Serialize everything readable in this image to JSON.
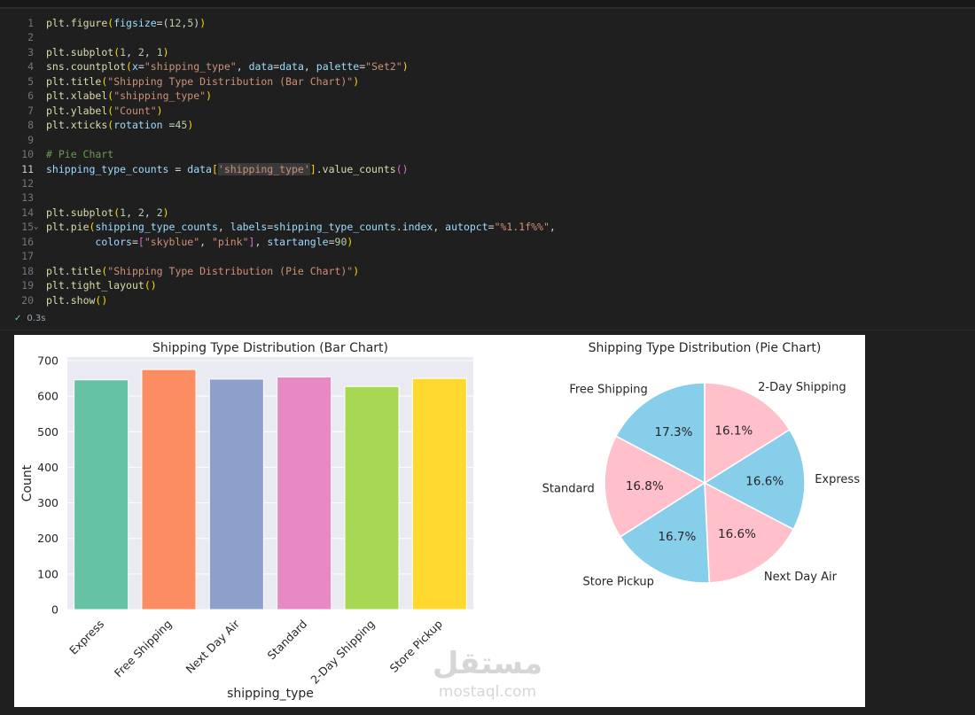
{
  "code_cell": {
    "lines": [
      {
        "n": "1",
        "tokens": [
          [
            "fn",
            "plt"
          ],
          [
            "p",
            "."
          ],
          [
            "fn",
            "figure"
          ],
          [
            "br",
            "("
          ],
          [
            "var",
            "figsize"
          ],
          [
            "p",
            "=("
          ],
          [
            "num",
            "12"
          ],
          [
            "p",
            ","
          ],
          [
            "num",
            "5"
          ],
          [
            "p",
            ")"
          ],
          [
            "br",
            ")"
          ]
        ]
      },
      {
        "n": "2",
        "tokens": []
      },
      {
        "n": "3",
        "tokens": [
          [
            "fn",
            "plt"
          ],
          [
            "p",
            "."
          ],
          [
            "fn",
            "subplot"
          ],
          [
            "br",
            "("
          ],
          [
            "num",
            "1"
          ],
          [
            "p",
            ", "
          ],
          [
            "num",
            "2"
          ],
          [
            "p",
            ", "
          ],
          [
            "num",
            "1"
          ],
          [
            "br",
            ")"
          ]
        ]
      },
      {
        "n": "4",
        "tokens": [
          [
            "fn",
            "sns"
          ],
          [
            "p",
            "."
          ],
          [
            "fn",
            "countplot"
          ],
          [
            "br",
            "("
          ],
          [
            "var",
            "x"
          ],
          [
            "p",
            "="
          ],
          [
            "str",
            "\"shipping_type\""
          ],
          [
            "p",
            ", "
          ],
          [
            "var",
            "data"
          ],
          [
            "p",
            "="
          ],
          [
            "var",
            "data"
          ],
          [
            "p",
            ", "
          ],
          [
            "var",
            "palette"
          ],
          [
            "p",
            "="
          ],
          [
            "str",
            "\"Set2\""
          ],
          [
            "br",
            ")"
          ]
        ]
      },
      {
        "n": "5",
        "tokens": [
          [
            "fn",
            "plt"
          ],
          [
            "p",
            "."
          ],
          [
            "fn",
            "title"
          ],
          [
            "br",
            "("
          ],
          [
            "str",
            "\"Shipping Type Distribution (Bar Chart)\""
          ],
          [
            "br",
            ")"
          ]
        ]
      },
      {
        "n": "6",
        "tokens": [
          [
            "fn",
            "plt"
          ],
          [
            "p",
            "."
          ],
          [
            "fn",
            "xlabel"
          ],
          [
            "br",
            "("
          ],
          [
            "str",
            "\"shipping_type\""
          ],
          [
            "br",
            ")"
          ]
        ]
      },
      {
        "n": "7",
        "tokens": [
          [
            "fn",
            "plt"
          ],
          [
            "p",
            "."
          ],
          [
            "fn",
            "ylabel"
          ],
          [
            "br",
            "("
          ],
          [
            "str",
            "\"Count\""
          ],
          [
            "br",
            ")"
          ]
        ]
      },
      {
        "n": "8",
        "tokens": [
          [
            "fn",
            "plt"
          ],
          [
            "p",
            "."
          ],
          [
            "fn",
            "xticks"
          ],
          [
            "br",
            "("
          ],
          [
            "var",
            "rotation"
          ],
          [
            "p",
            " ="
          ],
          [
            "num",
            "45"
          ],
          [
            "br",
            ")"
          ]
        ]
      },
      {
        "n": "9",
        "tokens": []
      },
      {
        "n": "10",
        "tokens": [
          [
            "com",
            "# Pie Chart"
          ]
        ]
      },
      {
        "n": "11",
        "active": true,
        "tokens": [
          [
            "var",
            "shipping_type_counts"
          ],
          [
            "p",
            " = "
          ],
          [
            "var",
            "data"
          ],
          [
            "br",
            "["
          ],
          [
            "hl",
            "'shipping_type'"
          ],
          [
            "br",
            "]"
          ],
          [
            "p",
            "."
          ],
          [
            "fn",
            "value_counts"
          ],
          [
            "br2",
            "()"
          ]
        ]
      },
      {
        "n": "12",
        "tokens": []
      },
      {
        "n": "13",
        "tokens": []
      },
      {
        "n": "14",
        "tokens": [
          [
            "fn",
            "plt"
          ],
          [
            "p",
            "."
          ],
          [
            "fn",
            "subplot"
          ],
          [
            "br",
            "("
          ],
          [
            "num",
            "1"
          ],
          [
            "p",
            ", "
          ],
          [
            "num",
            "2"
          ],
          [
            "p",
            ", "
          ],
          [
            "num",
            "2"
          ],
          [
            "br",
            ")"
          ]
        ]
      },
      {
        "n": "15",
        "fold": true,
        "tokens": [
          [
            "fn",
            "plt"
          ],
          [
            "p",
            "."
          ],
          [
            "fn",
            "pie"
          ],
          [
            "br",
            "("
          ],
          [
            "var",
            "shipping_type_counts"
          ],
          [
            "p",
            ", "
          ],
          [
            "var",
            "labels"
          ],
          [
            "p",
            "="
          ],
          [
            "var",
            "shipping_type_counts"
          ],
          [
            "p",
            "."
          ],
          [
            "var",
            "index"
          ],
          [
            "p",
            ", "
          ],
          [
            "var",
            "autopct"
          ],
          [
            "p",
            "="
          ],
          [
            "str",
            "\"%1.1f%%\""
          ],
          [
            "p",
            ","
          ]
        ]
      },
      {
        "n": "16",
        "tokens": [
          [
            "p",
            "        "
          ],
          [
            "var",
            "colors"
          ],
          [
            "p",
            "="
          ],
          [
            "br2",
            "["
          ],
          [
            "str",
            "\"skyblue\""
          ],
          [
            "p",
            ", "
          ],
          [
            "str",
            "\"pink\""
          ],
          [
            "br2",
            "]"
          ],
          [
            "p",
            ", "
          ],
          [
            "var",
            "startangle"
          ],
          [
            "p",
            "="
          ],
          [
            "num",
            "90"
          ],
          [
            "br",
            ")"
          ]
        ]
      },
      {
        "n": "17",
        "tokens": []
      },
      {
        "n": "18",
        "tokens": [
          [
            "fn",
            "plt"
          ],
          [
            "p",
            "."
          ],
          [
            "fn",
            "title"
          ],
          [
            "br",
            "("
          ],
          [
            "str",
            "\"Shipping Type Distribution (Pie Chart)\""
          ],
          [
            "br",
            ")"
          ]
        ]
      },
      {
        "n": "19",
        "tokens": [
          [
            "fn",
            "plt"
          ],
          [
            "p",
            "."
          ],
          [
            "fn",
            "tight_layout"
          ],
          [
            "br",
            "()"
          ]
        ]
      },
      {
        "n": "20",
        "tokens": [
          [
            "fn",
            "plt"
          ],
          [
            "p",
            "."
          ],
          [
            "fn",
            "show"
          ],
          [
            "br",
            "()"
          ]
        ]
      }
    ],
    "status_check": "✓",
    "status_time": "0.3s"
  },
  "chart_data": [
    {
      "type": "bar",
      "title": "Shipping Type Distribution (Bar Chart)",
      "xlabel": "shipping_type",
      "ylabel": "Count",
      "categories": [
        "Express",
        "Free Shipping",
        "Next Day Air",
        "Standard",
        "2-Day Shipping",
        "Store Pickup"
      ],
      "values": [
        646,
        675,
        648,
        654,
        627,
        650
      ],
      "colors": [
        "#66c2a5",
        "#fc8d62",
        "#8da0cb",
        "#e78ac3",
        "#a6d854",
        "#ffd92f"
      ],
      "ylim": [
        0,
        710
      ],
      "yticks": [
        "0",
        "100",
        "200",
        "300",
        "400",
        "500",
        "600",
        "700"
      ],
      "grid": true,
      "background": "#eaeaf2"
    },
    {
      "type": "pie",
      "title": "Shipping Type Distribution (Pie Chart)",
      "start_angle": 90,
      "slices": [
        {
          "label": "Free Shipping",
          "value": 17.3,
          "pct": "17.3%",
          "color": "#87ceeb"
        },
        {
          "label": "Standard",
          "value": 16.8,
          "pct": "16.8%",
          "color": "#ffc0cb"
        },
        {
          "label": "Store Pickup",
          "value": 16.7,
          "pct": "16.7%",
          "color": "#87ceeb"
        },
        {
          "label": "Next Day Air",
          "value": 16.6,
          "pct": "16.6%",
          "color": "#ffc0cb"
        },
        {
          "label": "Express",
          "value": 16.6,
          "pct": "16.6%",
          "color": "#87ceeb"
        },
        {
          "label": "2-Day Shipping",
          "value": 16.1,
          "pct": "16.1%",
          "color": "#ffc0cb"
        }
      ]
    }
  ],
  "watermark": {
    "arabic": "مستقل",
    "latin": "mostaql.com"
  }
}
